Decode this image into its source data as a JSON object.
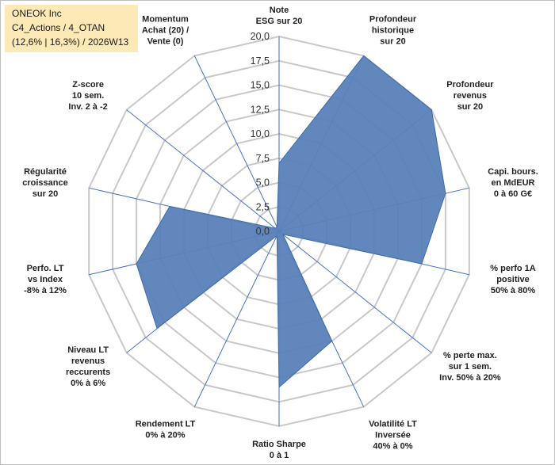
{
  "header": {
    "line1": "ONEOK Inc",
    "line2": "C4_Actions / 4_OTAN",
    "line3": "(12,6% | 16,3%) / 2026W13"
  },
  "colors": {
    "fill": "#5a81b9",
    "stroke": "#3e6aa6",
    "axis": "#4472c4",
    "grid": "#c8c8c8",
    "title_bg": "#fde9b6"
  },
  "chart_data": {
    "type": "radar",
    "rmin": 0,
    "rmax": 20,
    "tick_step": 2.5,
    "tick_labels": [
      "0,0",
      "2,5",
      "5,0",
      "7,5",
      "10,0",
      "12,5",
      "15,0",
      "17,5",
      "20,0"
    ],
    "axes": [
      [
        "Note",
        "ESG sur 20"
      ],
      [
        "Profondeur",
        "historique",
        "sur 20"
      ],
      [
        "Profondeur",
        "revenus",
        "sur 20"
      ],
      [
        "Capi. bours.",
        "en MdEUR",
        "0 à 60 G€"
      ],
      [
        "% perfo 1A",
        "positive",
        "50% à 80%"
      ],
      [
        "% perte max.",
        "sur 1 sem.",
        "Inv. 50% à 20%"
      ],
      [
        "Volatilité LT",
        "Inversée",
        "40% à 0%"
      ],
      [
        "Ratio Sharpe",
        "0 à 1"
      ],
      [
        "Rendement LT",
        "0% à 20%"
      ],
      [
        "Niveau LT",
        "revenus",
        "reccurents",
        "0% à 6%"
      ],
      [
        "Perfo. LT",
        "vs Index",
        "-8% à 12%"
      ],
      [
        "Régularité",
        "croissance",
        "sur 20"
      ],
      [
        "Z-score",
        "10 sem.",
        "Inv. 2 à -2"
      ],
      [
        "Momentum",
        "Achat (20) /",
        "Vente (0)"
      ]
    ],
    "values": [
      7,
      20,
      20,
      17.5,
      15,
      0.5,
      12.5,
      16,
      0.5,
      16,
      15,
      11.5,
      0.5,
      0.5
    ],
    "grid": true,
    "legend": "none"
  }
}
